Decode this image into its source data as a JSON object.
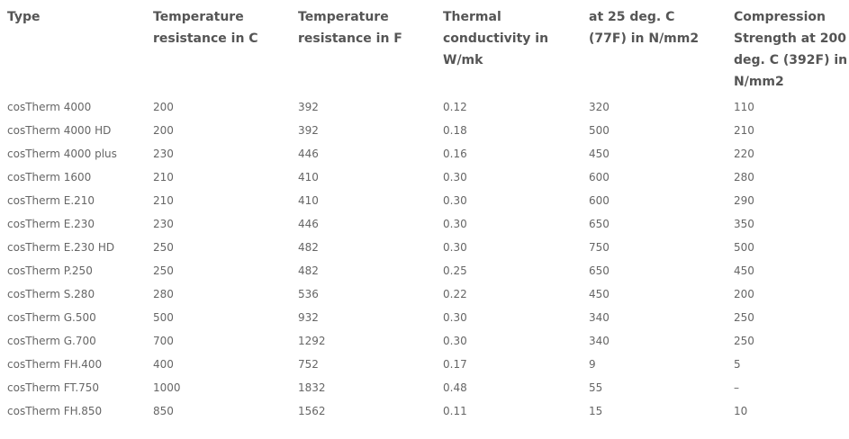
{
  "table": {
    "header": [
      "Type",
      "Temperature resistance in C",
      "Temperature resistance in F",
      "Thermal conductivity in W/mk",
      "at 25 deg. C (77F) in N/mm2",
      "Compression Strength at 200 deg. C (392F) in N/mm2"
    ],
    "rows": [
      [
        "cosTherm 4000",
        "200",
        "392",
        "0.12",
        "320",
        "110"
      ],
      [
        "cosTherm 4000 HD",
        "200",
        "392",
        "0.18",
        "500",
        "210"
      ],
      [
        "cosTherm 4000 plus",
        "230",
        "446",
        "0.16",
        "450",
        "220"
      ],
      [
        "cosTherm 1600",
        "210",
        "410",
        "0.30",
        "600",
        "280"
      ],
      [
        "cosTherm E.210",
        "210",
        "410",
        "0.30",
        "600",
        "290"
      ],
      [
        "cosTherm E.230",
        "230",
        "446",
        "0.30",
        "650",
        "350"
      ],
      [
        "cosTherm E.230 HD",
        "250",
        "482",
        "0.30",
        "750",
        "500"
      ],
      [
        "cosTherm P.250",
        "250",
        "482",
        "0.25",
        "650",
        "450"
      ],
      [
        "cosTherm S.280",
        "280",
        "536",
        "0.22",
        "450",
        "200"
      ],
      [
        "cosTherm G.500",
        "500",
        "932",
        "0.30",
        "340",
        "250"
      ],
      [
        "cosTherm G.700",
        "700",
        "1292",
        "0.30",
        "340",
        "250"
      ],
      [
        "cosTherm FH.400",
        "400",
        "752",
        "0.17",
        "9",
        "5"
      ],
      [
        "cosTherm FT.750",
        "1000",
        "1832",
        "0.48",
        "55",
        "–"
      ],
      [
        "cosTherm FH.850",
        "850",
        "1562",
        "0.11",
        "15",
        "10"
      ]
    ]
  }
}
